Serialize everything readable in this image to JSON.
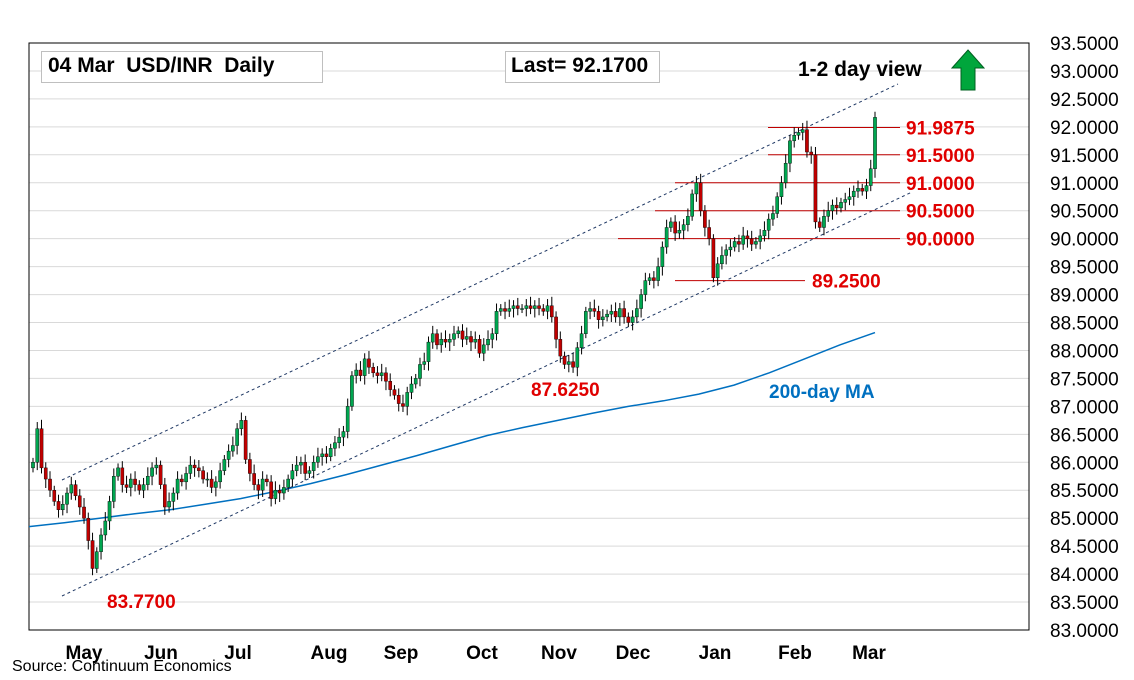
{
  "chart_data": {
    "type": "candlestick",
    "title": "04 Mar  USD/INR  Daily",
    "last_label": "Last= 92.1700",
    "view_label": "1-2 day view",
    "view_direction": "up",
    "source": "Source: Continuum Economics",
    "ylim": [
      83.0,
      93.5
    ],
    "y_ticks": [
      93.5,
      93.0,
      92.5,
      92.0,
      91.5,
      91.0,
      90.5,
      90.0,
      89.5,
      89.0,
      88.5,
      88.0,
      87.5,
      87.0,
      86.5,
      86.0,
      85.5,
      85.0,
      84.5,
      84.0,
      83.5,
      83.0
    ],
    "y_tick_labels": [
      "93.5000",
      "93.0000",
      "92.5000",
      "92.0000",
      "91.5000",
      "91.0000",
      "90.5000",
      "90.0000",
      "89.5000",
      "89.0000",
      "88.5000",
      "88.0000",
      "87.5000",
      "87.0000",
      "86.5000",
      "86.0000",
      "85.5000",
      "85.0000",
      "84.5000",
      "84.0000",
      "83.5000",
      "83.0000"
    ],
    "x_tick_labels": [
      "May",
      "Jun",
      "Jul",
      "Aug",
      "Sep",
      "Oct",
      "Nov",
      "Dec",
      "Jan",
      "Feb",
      "Mar"
    ],
    "grid": true,
    "series_ohlc_close": [
      86.0,
      86.6,
      85.9,
      85.7,
      85.5,
      85.3,
      85.15,
      85.25,
      85.45,
      85.6,
      85.4,
      85.2,
      85.0,
      84.6,
      84.1,
      84.4,
      84.7,
      84.95,
      85.3,
      85.75,
      85.9,
      85.6,
      85.55,
      85.7,
      85.6,
      85.5,
      85.6,
      85.75,
      85.9,
      85.95,
      85.6,
      85.2,
      85.3,
      85.45,
      85.7,
      85.65,
      85.8,
      85.95,
      85.9,
      85.85,
      85.7,
      85.7,
      85.55,
      85.65,
      85.85,
      86.05,
      86.2,
      86.3,
      86.6,
      86.75,
      86.05,
      85.8,
      85.6,
      85.5,
      85.7,
      85.65,
      85.35,
      85.5,
      85.45,
      85.55,
      85.7,
      85.85,
      85.95,
      86.0,
      85.8,
      85.85,
      86.0,
      86.1,
      86.15,
      86.1,
      86.25,
      86.35,
      86.45,
      86.55,
      87.0,
      87.55,
      87.65,
      87.55,
      87.85,
      87.7,
      87.6,
      87.55,
      87.6,
      87.45,
      87.3,
      87.2,
      87.05,
      87.0,
      87.25,
      87.4,
      87.5,
      87.75,
      87.8,
      88.15,
      88.3,
      88.1,
      88.2,
      88.15,
      88.2,
      88.3,
      88.35,
      88.2,
      88.25,
      88.15,
      88.2,
      87.95,
      88.1,
      88.2,
      88.3,
      88.7,
      88.75,
      88.7,
      88.75,
      88.8,
      88.75,
      88.75,
      88.8,
      88.75,
      88.8,
      88.75,
      88.7,
      88.8,
      88.6,
      88.2,
      87.9,
      87.75,
      87.8,
      87.7,
      88.05,
      88.3,
      88.7,
      88.75,
      88.7,
      88.55,
      88.6,
      88.65,
      88.7,
      88.6,
      88.75,
      88.6,
      88.5,
      88.6,
      88.75,
      89.0,
      89.25,
      89.3,
      89.25,
      89.5,
      89.85,
      90.2,
      90.3,
      90.1,
      90.15,
      90.25,
      90.4,
      90.8,
      91.0,
      90.5,
      90.2,
      90.0,
      89.3,
      89.55,
      89.7,
      89.8,
      89.85,
      89.95,
      89.9,
      90.05,
      90.0,
      89.9,
      89.95,
      90.05,
      90.15,
      90.35,
      90.45,
      90.75,
      91.0,
      91.35,
      91.75,
      91.85,
      91.9,
      91.95,
      91.55,
      91.5,
      90.3,
      90.2,
      90.4,
      90.5,
      90.6,
      90.55,
      90.65,
      90.7,
      90.75,
      90.85,
      90.9,
      90.85,
      90.95,
      91.25,
      92.17
    ],
    "annotations": [
      {
        "label": "91.9875",
        "value": 91.9875
      },
      {
        "label": "91.5000",
        "value": 91.5
      },
      {
        "label": "91.0000",
        "value": 91.0
      },
      {
        "label": "90.5000",
        "value": 90.5
      },
      {
        "label": "90.0000",
        "value": 90.0
      },
      {
        "label": "89.2500",
        "value": 89.25
      },
      {
        "label": "87.6250",
        "value": 87.625
      },
      {
        "label": "83.7700",
        "value": 83.77
      }
    ],
    "ma_label": "200-day MA",
    "ma_values": [
      84.85,
      84.92,
      85.0,
      85.08,
      85.15,
      85.25,
      85.35,
      85.48,
      85.62,
      85.78,
      85.95,
      86.12,
      86.3,
      86.48,
      86.62,
      86.75,
      86.88,
      87.0,
      87.1,
      87.22,
      87.38,
      87.6,
      87.85,
      88.1,
      88.32
    ],
    "colors": {
      "up": "#00a650",
      "down": "#c00000",
      "annotation": "#e00000",
      "ma": "#0070c0",
      "channel": "#1f3864",
      "arrow": "#00a63c"
    }
  }
}
